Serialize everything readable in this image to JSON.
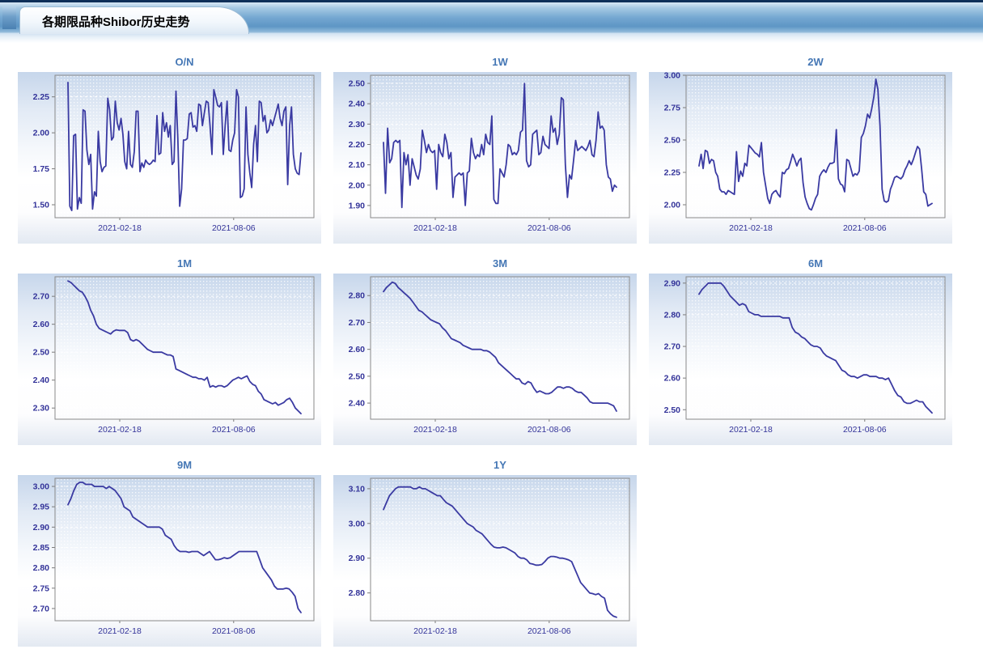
{
  "page": {
    "title_tab": "各期限品种Shibor历史走势"
  },
  "colors": {
    "line": "#3a3aa2",
    "tick_label": "#333399",
    "chart_title": "#4577b5",
    "plot_border": "#8a8a8a",
    "grid_dot": "#ffffff",
    "header_bar_mid": "#74a7d1",
    "header_topline": "#0f3059",
    "panel_top": "#c6d6eb"
  },
  "chart_data": [
    {
      "type": "line",
      "title": "O/N",
      "ylim": [
        1.41,
        2.4
      ],
      "yticks": [
        {
          "v": 2.25,
          "label": "2.25"
        },
        {
          "v": 2.0,
          "label": "2.00"
        },
        {
          "v": 1.75,
          "label": "1.75"
        },
        {
          "v": 1.5,
          "label": "1.50"
        }
      ],
      "xticks": [
        {
          "pos": 0.25,
          "label": "2021-02-18"
        },
        {
          "pos": 0.69,
          "label": "2021-08-06"
        }
      ],
      "values": [
        2.35,
        1.49,
        1.46,
        1.98,
        1.99,
        1.47,
        1.55,
        1.51,
        2.16,
        2.15,
        1.88,
        1.78,
        1.85,
        1.47,
        1.59,
        1.56,
        2.01,
        1.8,
        1.73,
        1.76,
        1.77,
        2.24,
        2.16,
        1.95,
        1.97,
        2.22,
        2.07,
        2.02,
        2.1,
        1.99,
        1.8,
        1.75,
        2.01,
        1.78,
        1.76,
        1.87,
        2.15,
        2.15,
        1.73,
        1.79,
        1.76,
        1.81,
        1.79,
        1.78,
        1.79,
        1.81,
        1.8,
        2.12,
        1.85,
        1.86,
        2.14,
        2.01,
        2.07,
        1.97,
        2.05,
        1.78,
        1.8,
        2.29,
        1.96,
        1.49,
        1.61,
        1.95,
        1.95,
        1.96,
        2.13,
        2.14,
        2.04,
        2.05,
        2.01,
        2.2,
        2.19,
        2.05,
        2.14,
        2.22,
        2.21,
        2.05,
        1.85,
        2.3,
        2.25,
        2.19,
        2.18,
        2.21,
        1.85,
        2.05,
        2.22,
        1.88,
        1.87,
        1.95,
        2.0,
        2.3,
        2.25,
        1.55,
        1.56,
        1.61,
        2.18,
        1.85,
        1.72,
        1.62,
        1.92,
        2.05,
        1.8,
        2.22,
        2.21,
        2.08,
        2.12,
        2.0,
        2.02,
        2.09,
        2.05,
        2.1,
        2.15,
        2.2,
        2.1,
        2.05,
        2.15,
        2.18,
        1.64,
        2.05,
        2.18,
        1.85,
        1.75,
        1.72,
        1.71,
        1.86
      ]
    },
    {
      "type": "line",
      "title": "1W",
      "ylim": [
        1.84,
        2.54
      ],
      "yticks": [
        {
          "v": 2.5,
          "label": "2.50"
        },
        {
          "v": 2.4,
          "label": "2.40"
        },
        {
          "v": 2.3,
          "label": "2.30"
        },
        {
          "v": 2.2,
          "label": "2.20"
        },
        {
          "v": 2.1,
          "label": "2.10"
        },
        {
          "v": 2.0,
          "label": "2.00"
        },
        {
          "v": 1.9,
          "label": "1.90"
        }
      ],
      "xticks": [
        {
          "pos": 0.25,
          "label": "2021-02-18"
        },
        {
          "pos": 0.69,
          "label": "2021-08-06"
        }
      ],
      "values": [
        2.21,
        1.96,
        2.28,
        2.11,
        2.13,
        2.21,
        2.22,
        2.21,
        2.22,
        1.89,
        2.16,
        2.1,
        2.15,
        2.0,
        2.13,
        2.09,
        2.05,
        2.03,
        2.08,
        2.27,
        2.22,
        2.16,
        2.2,
        2.17,
        2.16,
        2.17,
        1.98,
        2.2,
        2.16,
        2.14,
        2.25,
        2.21,
        2.13,
        2.16,
        1.94,
        2.04,
        2.05,
        2.06,
        2.05,
        2.06,
        1.9,
        2.06,
        2.07,
        2.23,
        2.16,
        2.13,
        2.15,
        2.14,
        2.2,
        2.15,
        2.25,
        2.21,
        2.2,
        2.34,
        1.93,
        1.91,
        1.91,
        2.08,
        2.06,
        2.04,
        2.1,
        2.2,
        2.19,
        2.15,
        2.16,
        2.15,
        2.17,
        2.26,
        2.27,
        2.5,
        2.12,
        2.09,
        2.1,
        2.25,
        2.26,
        2.27,
        2.15,
        2.16,
        2.24,
        2.2,
        2.19,
        2.18,
        2.34,
        2.26,
        2.28,
        2.2,
        2.25,
        2.43,
        2.42,
        2.1,
        1.94,
        2.05,
        2.03,
        2.12,
        2.22,
        2.17,
        2.18,
        2.19,
        2.18,
        2.17,
        2.19,
        2.22,
        2.15,
        2.14,
        2.22,
        2.36,
        2.28,
        2.29,
        2.27,
        2.1,
        2.04,
        2.03,
        1.97,
        2.0,
        1.99
      ]
    },
    {
      "type": "line",
      "title": "2W",
      "ylim": [
        1.9,
        3.0
      ],
      "yticks": [
        {
          "v": 3.0,
          "label": "3.00"
        },
        {
          "v": 2.75,
          "label": "2.75"
        },
        {
          "v": 2.5,
          "label": "2.50"
        },
        {
          "v": 2.25,
          "label": "2.25"
        },
        {
          "v": 2.0,
          "label": "2.00"
        }
      ],
      "xticks": [
        {
          "pos": 0.25,
          "label": "2021-02-18"
        },
        {
          "pos": 0.69,
          "label": "2021-08-06"
        }
      ],
      "values": [
        2.3,
        2.39,
        2.28,
        2.42,
        2.41,
        2.32,
        2.35,
        2.34,
        2.25,
        2.22,
        2.12,
        2.1,
        2.1,
        2.08,
        2.11,
        2.1,
        2.09,
        2.08,
        2.41,
        2.18,
        2.26,
        2.22,
        2.32,
        2.3,
        2.46,
        2.44,
        2.42,
        2.4,
        2.39,
        2.37,
        2.48,
        2.25,
        2.15,
        2.05,
        2.01,
        2.08,
        2.1,
        2.11,
        2.08,
        2.06,
        2.25,
        2.24,
        2.27,
        2.28,
        2.33,
        2.39,
        2.35,
        2.3,
        2.34,
        2.36,
        2.17,
        2.06,
        2.01,
        1.97,
        1.96,
        2.0,
        2.05,
        2.08,
        2.22,
        2.25,
        2.27,
        2.25,
        2.29,
        2.32,
        2.32,
        2.33,
        2.58,
        2.2,
        2.16,
        2.15,
        2.1,
        2.35,
        2.34,
        2.28,
        2.22,
        2.24,
        2.23,
        2.26,
        2.52,
        2.55,
        2.61,
        2.7,
        2.67,
        2.74,
        2.83,
        2.97,
        2.89,
        2.61,
        2.12,
        2.03,
        2.02,
        2.03,
        2.12,
        2.16,
        2.21,
        2.22,
        2.21,
        2.2,
        2.22,
        2.27,
        2.3,
        2.34,
        2.31,
        2.35,
        2.4,
        2.45,
        2.43,
        2.28,
        2.1,
        2.08,
        1.99,
        2.0,
        2.01
      ]
    },
    {
      "type": "line",
      "title": "1M",
      "ylim": [
        2.26,
        2.77
      ],
      "yticks": [
        {
          "v": 2.7,
          "label": "2.70"
        },
        {
          "v": 2.6,
          "label": "2.60"
        },
        {
          "v": 2.5,
          "label": "2.50"
        },
        {
          "v": 2.4,
          "label": "2.40"
        },
        {
          "v": 2.3,
          "label": "2.30"
        }
      ],
      "xticks": [
        {
          "pos": 0.25,
          "label": "2021-02-18"
        },
        {
          "pos": 0.69,
          "label": "2021-08-06"
        }
      ],
      "values": [
        2.755,
        2.75,
        2.74,
        2.73,
        2.72,
        2.715,
        2.7,
        2.68,
        2.65,
        2.63,
        2.6,
        2.585,
        2.58,
        2.575,
        2.57,
        2.565,
        2.575,
        2.58,
        2.578,
        2.578,
        2.578,
        2.57,
        2.545,
        2.54,
        2.545,
        2.54,
        2.53,
        2.52,
        2.51,
        2.505,
        2.5,
        2.5,
        2.5,
        2.5,
        2.495,
        2.49,
        2.49,
        2.485,
        2.44,
        2.435,
        2.43,
        2.425,
        2.42,
        2.415,
        2.41,
        2.41,
        2.405,
        2.405,
        2.4,
        2.41,
        2.375,
        2.38,
        2.375,
        2.38,
        2.38,
        2.375,
        2.38,
        2.39,
        2.4,
        2.405,
        2.41,
        2.405,
        2.41,
        2.415,
        2.395,
        2.385,
        2.38,
        2.36,
        2.35,
        2.33,
        2.325,
        2.32,
        2.315,
        2.32,
        2.31,
        2.315,
        2.32,
        2.33,
        2.335,
        2.32,
        2.3,
        2.29,
        2.28
      ]
    },
    {
      "type": "line",
      "title": "3M",
      "ylim": [
        2.34,
        2.87
      ],
      "yticks": [
        {
          "v": 2.8,
          "label": "2.80"
        },
        {
          "v": 2.7,
          "label": "2.70"
        },
        {
          "v": 2.6,
          "label": "2.60"
        },
        {
          "v": 2.5,
          "label": "2.50"
        },
        {
          "v": 2.4,
          "label": "2.40"
        }
      ],
      "xticks": [
        {
          "pos": 0.25,
          "label": "2021-02-18"
        },
        {
          "pos": 0.69,
          "label": "2021-08-06"
        }
      ],
      "values": [
        2.815,
        2.83,
        2.84,
        2.85,
        2.845,
        2.83,
        2.82,
        2.81,
        2.8,
        2.79,
        2.775,
        2.76,
        2.745,
        2.74,
        2.73,
        2.72,
        2.71,
        2.705,
        2.7,
        2.695,
        2.68,
        2.67,
        2.655,
        2.64,
        2.635,
        2.63,
        2.625,
        2.615,
        2.61,
        2.605,
        2.6,
        2.6,
        2.6,
        2.6,
        2.595,
        2.595,
        2.59,
        2.58,
        2.57,
        2.55,
        2.54,
        2.53,
        2.52,
        2.51,
        2.5,
        2.49,
        2.49,
        2.475,
        2.47,
        2.48,
        2.475,
        2.455,
        2.44,
        2.445,
        2.44,
        2.435,
        2.435,
        2.44,
        2.45,
        2.46,
        2.46,
        2.455,
        2.46,
        2.46,
        2.455,
        2.445,
        2.44,
        2.44,
        2.43,
        2.42,
        2.405,
        2.4,
        2.4,
        2.4,
        2.4,
        2.4,
        2.4,
        2.395,
        2.39,
        2.37
      ]
    },
    {
      "type": "line",
      "title": "6M",
      "ylim": [
        2.47,
        2.92
      ],
      "yticks": [
        {
          "v": 2.9,
          "label": "2.90"
        },
        {
          "v": 2.8,
          "label": "2.80"
        },
        {
          "v": 2.7,
          "label": "2.70"
        },
        {
          "v": 2.6,
          "label": "2.60"
        },
        {
          "v": 2.5,
          "label": "2.50"
        }
      ],
      "xticks": [
        {
          "pos": 0.25,
          "label": "2021-02-18"
        },
        {
          "pos": 0.69,
          "label": "2021-08-06"
        }
      ],
      "values": [
        2.865,
        2.88,
        2.89,
        2.9,
        2.9,
        2.9,
        2.9,
        2.9,
        2.89,
        2.875,
        2.86,
        2.85,
        2.84,
        2.83,
        2.835,
        2.83,
        2.81,
        2.805,
        2.8,
        2.8,
        2.795,
        2.795,
        2.795,
        2.795,
        2.795,
        2.795,
        2.795,
        2.79,
        2.79,
        2.79,
        2.76,
        2.745,
        2.74,
        2.73,
        2.725,
        2.715,
        2.705,
        2.7,
        2.7,
        2.695,
        2.68,
        2.67,
        2.665,
        2.66,
        2.655,
        2.64,
        2.625,
        2.62,
        2.61,
        2.605,
        2.605,
        2.6,
        2.605,
        2.61,
        2.61,
        2.605,
        2.605,
        2.605,
        2.6,
        2.6,
        2.595,
        2.6,
        2.58,
        2.56,
        2.545,
        2.54,
        2.525,
        2.52,
        2.52,
        2.525,
        2.53,
        2.525,
        2.525,
        2.51,
        2.5,
        2.49
      ]
    },
    {
      "type": "line",
      "title": "9M",
      "ylim": [
        2.67,
        3.02
      ],
      "yticks": [
        {
          "v": 3.0,
          "label": "3.00"
        },
        {
          "v": 2.95,
          "label": "2.95"
        },
        {
          "v": 2.9,
          "label": "2.90"
        },
        {
          "v": 2.85,
          "label": "2.85"
        },
        {
          "v": 2.8,
          "label": "2.80"
        },
        {
          "v": 2.75,
          "label": "2.75"
        },
        {
          "v": 2.7,
          "label": "2.70"
        }
      ],
      "xticks": [
        {
          "pos": 0.25,
          "label": "2021-02-18"
        },
        {
          "pos": 0.69,
          "label": "2021-08-06"
        }
      ],
      "values": [
        2.955,
        2.97,
        2.99,
        3.005,
        3.01,
        3.01,
        3.005,
        3.005,
        3.005,
        3.0,
        3.0,
        3.0,
        3.0,
        2.995,
        3.0,
        2.995,
        2.99,
        2.98,
        2.97,
        2.95,
        2.945,
        2.94,
        2.925,
        2.92,
        2.915,
        2.91,
        2.905,
        2.9,
        2.9,
        2.9,
        2.9,
        2.9,
        2.895,
        2.88,
        2.875,
        2.87,
        2.855,
        2.845,
        2.84,
        2.84,
        2.84,
        2.838,
        2.84,
        2.84,
        2.84,
        2.835,
        2.83,
        2.835,
        2.84,
        2.83,
        2.82,
        2.82,
        2.822,
        2.825,
        2.823,
        2.825,
        2.83,
        2.835,
        2.84,
        2.84,
        2.84,
        2.84,
        2.84,
        2.84,
        2.84,
        2.82,
        2.8,
        2.79,
        2.78,
        2.77,
        2.755,
        2.748,
        2.748,
        2.748,
        2.75,
        2.748,
        2.74,
        2.73,
        2.7,
        2.69
      ]
    },
    {
      "type": "line",
      "title": "1Y",
      "ylim": [
        2.72,
        3.13
      ],
      "yticks": [
        {
          "v": 3.1,
          "label": "3.10"
        },
        {
          "v": 3.0,
          "label": "3.00"
        },
        {
          "v": 2.9,
          "label": "2.90"
        },
        {
          "v": 2.8,
          "label": "2.80"
        }
      ],
      "xticks": [
        {
          "pos": 0.25,
          "label": "2021-02-18"
        },
        {
          "pos": 0.69,
          "label": "2021-08-06"
        }
      ],
      "values": [
        3.04,
        3.06,
        3.08,
        3.09,
        3.1,
        3.105,
        3.105,
        3.105,
        3.105,
        3.105,
        3.1,
        3.1,
        3.105,
        3.1,
        3.1,
        3.095,
        3.09,
        3.085,
        3.08,
        3.08,
        3.07,
        3.06,
        3.055,
        3.05,
        3.04,
        3.03,
        3.02,
        3.01,
        3.0,
        2.995,
        2.99,
        2.98,
        2.975,
        2.97,
        2.96,
        2.95,
        2.94,
        2.932,
        2.93,
        2.93,
        2.932,
        2.93,
        2.925,
        2.92,
        2.915,
        2.905,
        2.9,
        2.9,
        2.895,
        2.885,
        2.883,
        2.88,
        2.88,
        2.882,
        2.89,
        2.9,
        2.905,
        2.905,
        2.903,
        2.9,
        2.9,
        2.898,
        2.895,
        2.89,
        2.87,
        2.85,
        2.83,
        2.82,
        2.81,
        2.8,
        2.798,
        2.795,
        2.798,
        2.79,
        2.785,
        2.75,
        2.74,
        2.733,
        2.73
      ]
    }
  ]
}
